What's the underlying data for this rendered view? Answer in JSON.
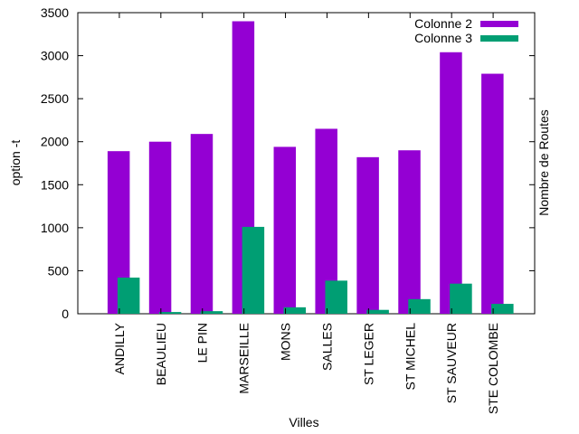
{
  "chart_data": {
    "type": "bar",
    "xlabel": "Villes",
    "ylabel": "option -t",
    "y2label": "Nombre de Routes",
    "ylim": [
      0,
      3500
    ],
    "yticks": [
      0,
      500,
      1000,
      1500,
      2000,
      2500,
      3000,
      3500
    ],
    "grid": false,
    "legend_position": "top-right",
    "categories": [
      "ANDILLY",
      "BEAULIEU",
      "LE PIN",
      "MARSEILLE",
      "MONS",
      "SALLES",
      "ST LEGER",
      "ST MICHEL",
      "ST SAUVEUR",
      "STE COLOMBE"
    ],
    "series": [
      {
        "name": "Colonne 2",
        "color": "#9400d3",
        "values": [
          1890,
          2000,
          2090,
          3400,
          1940,
          2150,
          1820,
          1900,
          3040,
          2790
        ]
      },
      {
        "name": "Colonne 3",
        "color": "#009e73",
        "values": [
          420,
          20,
          30,
          1010,
          75,
          385,
          45,
          170,
          350,
          115
        ]
      }
    ]
  }
}
